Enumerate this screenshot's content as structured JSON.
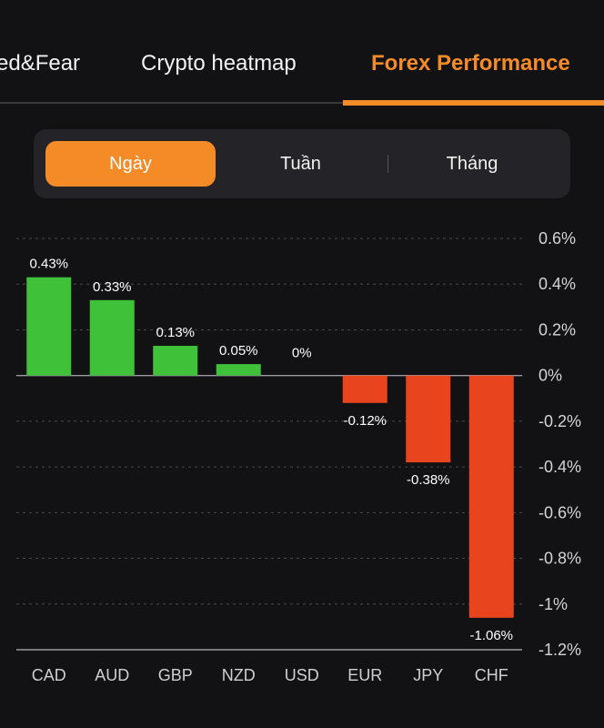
{
  "tabs": [
    {
      "label": "ed&Fear",
      "active": false
    },
    {
      "label": "Crypto heatmap",
      "active": false
    },
    {
      "label": "Forex Performance",
      "active": true
    }
  ],
  "period_selector": {
    "options": [
      "Ngày",
      "Tuần",
      "Tháng"
    ],
    "selected": "Ngày"
  },
  "colors": {
    "accent": "#f58b27",
    "positive": "#3fc23a",
    "negative": "#e8441d",
    "background": "#121214"
  },
  "chart_data": {
    "type": "bar",
    "categories": [
      "CAD",
      "AUD",
      "GBP",
      "NZD",
      "USD",
      "EUR",
      "JPY",
      "CHF"
    ],
    "values": [
      0.43,
      0.33,
      0.13,
      0.05,
      0,
      -0.12,
      -0.38,
      -1.06
    ],
    "value_labels": [
      "0.43%",
      "0.33%",
      "0.13%",
      "0.05%",
      "0%",
      "-0.12%",
      "-0.38%",
      "-1.06%"
    ],
    "ylim": [
      -1.2,
      0.6
    ],
    "y_ticks": [
      0.6,
      0.4,
      0.2,
      0,
      -0.2,
      -0.4,
      -0.6,
      -0.8,
      -1,
      -1.2
    ],
    "y_tick_labels": [
      "0.6%",
      "0.4%",
      "0.2%",
      "0%",
      "-0.2%",
      "-0.4%",
      "-0.6%",
      "-0.8%",
      "-1%",
      "-1.2%"
    ],
    "y_axis_side": "right",
    "grid": true
  }
}
